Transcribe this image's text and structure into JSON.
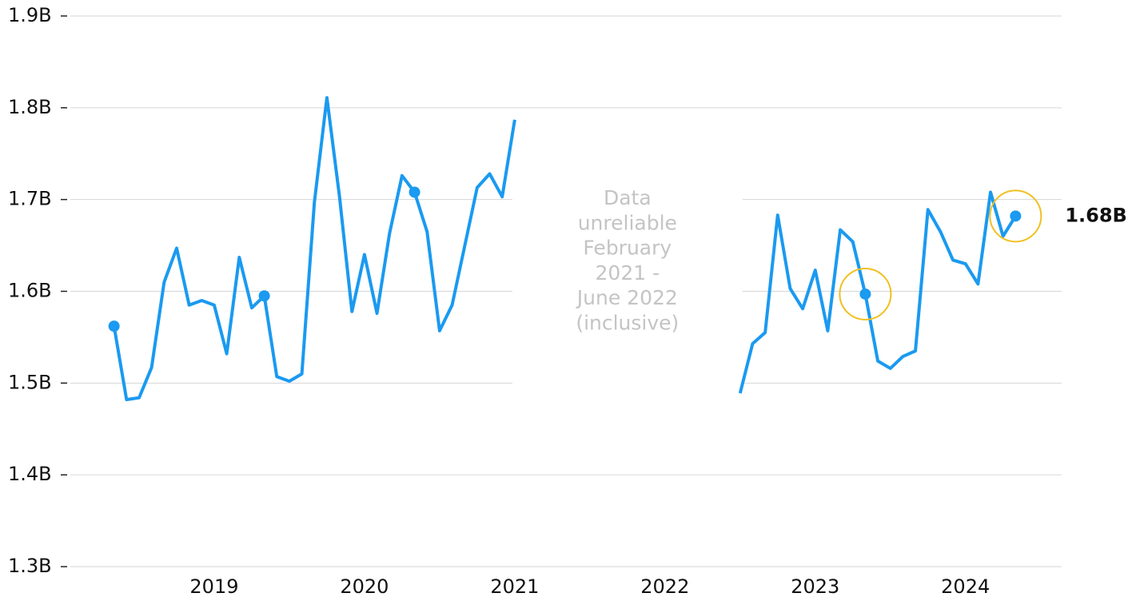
{
  "chart_data": {
    "type": "line",
    "x": [
      2018.3333,
      2018.4167,
      2018.5,
      2018.5833,
      2018.6667,
      2018.75,
      2018.8333,
      2018.9167,
      2019.0,
      2019.0833,
      2019.1667,
      2019.25,
      2019.3333,
      2019.4167,
      2019.5,
      2019.5833,
      2019.6667,
      2019.75,
      2019.8333,
      2019.9167,
      2020.0,
      2020.0833,
      2020.1667,
      2020.25,
      2020.3333,
      2020.4167,
      2020.5,
      2020.5833,
      2020.6667,
      2020.75,
      2020.8333,
      2020.9167,
      2021.0,
      2021.0833,
      2022.5,
      2022.5833,
      2022.6667,
      2022.75,
      2022.8333,
      2022.9167,
      2023.0,
      2023.0833,
      2023.1667,
      2023.25,
      2023.3333,
      2023.4167,
      2023.5,
      2023.5833,
      2023.6667,
      2023.75,
      2023.8333,
      2023.9167,
      2024.0,
      2024.0833,
      2024.1667,
      2024.25,
      2024.3333
    ],
    "series": [
      {
        "color": "#1a9af0",
        "values": [
          1.562,
          1.482,
          1.484,
          1.517,
          1.61,
          1.647,
          1.585,
          1.59,
          1.585,
          1.532,
          1.637,
          1.582,
          1.595,
          1.507,
          1.502,
          1.51,
          1.697,
          1.811,
          1.704,
          1.578,
          1.64,
          1.576,
          1.663,
          1.726,
          1.708,
          1.665,
          1.557,
          1.585,
          1.649,
          1.713,
          1.728,
          1.703,
          1.787,
          null,
          1.489,
          1.543,
          1.555,
          1.683,
          1.603,
          1.581,
          1.623,
          1.557,
          1.667,
          1.654,
          1.597,
          1.524,
          1.516,
          1.529,
          1.535,
          1.689,
          1.665,
          1.634,
          1.63,
          1.608,
          1.708,
          1.66,
          1.682
        ],
        "marker": [
          true,
          false,
          false,
          false,
          false,
          false,
          false,
          false,
          false,
          false,
          false,
          false,
          true,
          false,
          false,
          false,
          false,
          false,
          false,
          false,
          false,
          false,
          false,
          false,
          true,
          false,
          false,
          false,
          false,
          false,
          false,
          false,
          false,
          false,
          false,
          false,
          false,
          false,
          false,
          false,
          false,
          false,
          false,
          false,
          true,
          false,
          false,
          false,
          false,
          false,
          false,
          false,
          false,
          false,
          false,
          false,
          true
        ],
        "ring": [
          false,
          false,
          false,
          false,
          false,
          false,
          false,
          false,
          false,
          false,
          false,
          false,
          false,
          false,
          false,
          false,
          false,
          false,
          false,
          false,
          false,
          false,
          false,
          false,
          false,
          false,
          false,
          false,
          false,
          false,
          false,
          false,
          false,
          false,
          false,
          false,
          false,
          false,
          false,
          false,
          false,
          false,
          false,
          false,
          true,
          false,
          false,
          false,
          false,
          false,
          false,
          false,
          false,
          false,
          false,
          false,
          true
        ],
        "value_labels": [
          null,
          null,
          null,
          null,
          null,
          null,
          null,
          null,
          null,
          null,
          null,
          null,
          null,
          null,
          null,
          null,
          null,
          null,
          null,
          null,
          null,
          null,
          null,
          null,
          null,
          null,
          null,
          null,
          null,
          null,
          null,
          null,
          null,
          null,
          null,
          null,
          null,
          null,
          null,
          null,
          null,
          null,
          null,
          null,
          null,
          null,
          null,
          null,
          null,
          null,
          null,
          null,
          null,
          null,
          null,
          null,
          "1.68B"
        ]
      }
    ],
    "ring_color": "#f0c020",
    "annotation": [
      "Data",
      "unreliable",
      "February",
      "2021 -",
      "June 2022",
      "(inclusive)"
    ],
    "xlim": [
      2018.0,
      2024.64
    ],
    "xticks": [
      2019,
      2020,
      2021,
      2022,
      2023,
      2024
    ],
    "ylim": [
      1.3,
      1.9
    ],
    "yticks": [
      {
        "value": 1.3,
        "label": "1.3B"
      },
      {
        "value": 1.4,
        "label": "1.4B"
      },
      {
        "value": 1.5,
        "label": "1.5B"
      },
      {
        "value": 1.6,
        "label": "1.6B"
      },
      {
        "value": 1.7,
        "label": "1.7B"
      },
      {
        "value": 1.8,
        "label": "1.8B"
      },
      {
        "value": 1.9,
        "label": "1.9B"
      }
    ],
    "grid": true
  }
}
